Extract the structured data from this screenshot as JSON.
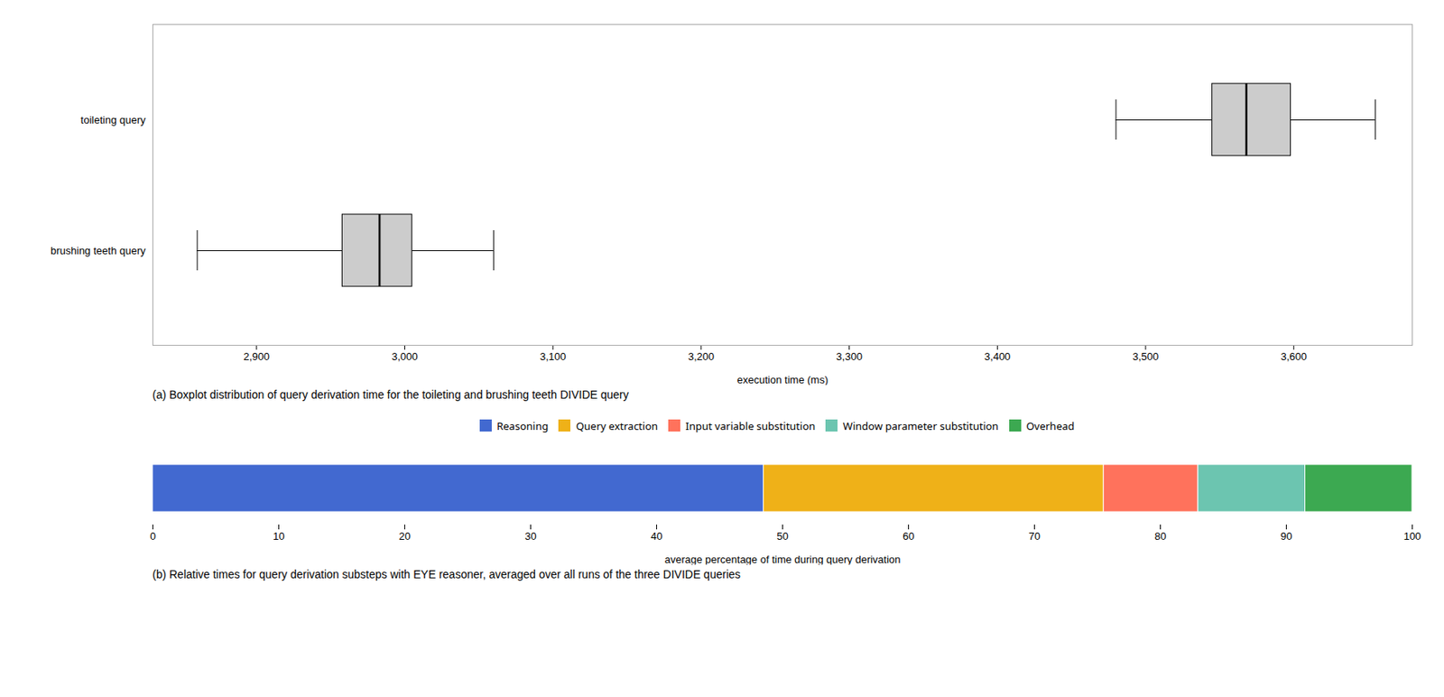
{
  "chart_data": [
    {
      "type": "boxplot",
      "orientation": "horizontal",
      "categories": [
        "toileting query",
        "brushing teeth query"
      ],
      "boxes": [
        {
          "whislo": 3480,
          "q1": 3545,
          "med": 3568,
          "q3": 3598,
          "whishi": 3655
        },
        {
          "whislo": 2860,
          "q1": 2958,
          "med": 2983,
          "q3": 3005,
          "whishi": 3060
        }
      ],
      "xlim": [
        2830,
        3680
      ],
      "xticks": [
        2900,
        3000,
        3100,
        3200,
        3300,
        3400,
        3500,
        3600
      ],
      "xlabel": "execution time (ms)",
      "caption": "(a) Boxplot distribution of query derivation time for the toileting and brushing teeth DIVIDE query"
    },
    {
      "type": "bar",
      "orientation": "horizontal",
      "stacked": true,
      "legend": "top",
      "categories": [
        null
      ],
      "series": [
        {
          "name": "Reasoning",
          "values": [
            48.5
          ]
        },
        {
          "name": "Query extraction",
          "values": [
            27.0
          ]
        },
        {
          "name": "Input variable substitution",
          "values": [
            7.5
          ]
        },
        {
          "name": "Window parameter substitution",
          "values": [
            8.5
          ]
        },
        {
          "name": "Overhead",
          "values": [
            8.5
          ]
        }
      ],
      "xlim": [
        0,
        100
      ],
      "xticks": [
        0,
        10,
        20,
        30,
        40,
        50,
        60,
        70,
        80,
        90,
        100
      ],
      "xlabel": "average percentage of time during query derivation",
      "caption": "(b) Relative times for query derivation substeps with EYE reasoner, averaged over all runs of the three DIVIDE queries"
    }
  ]
}
